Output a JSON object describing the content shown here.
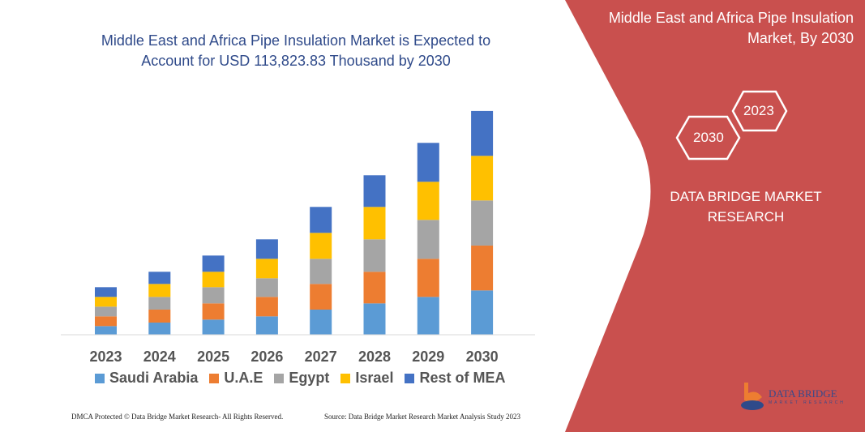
{
  "header": {
    "title": "Middle East and Africa Pipe Insulation Market is Expected to Account for USD 113,823.83 Thousand by 2030"
  },
  "side_panel": {
    "title": "Middle East and Africa Pipe Insulation Market, By 2030",
    "hex_left": "2030",
    "hex_right": "2023",
    "brand": "DATA BRIDGE MARKET RESEARCH",
    "logo_text": "DATA BRIDGE",
    "logo_sub": "MARKET RESEARCH",
    "color": "#c9504e"
  },
  "footer": {
    "left": "DMCA Protected © Data Bridge Market Research-  All Rights Reserved.",
    "right": "Source: Data Bridge Market Research  Market Analysis Study 2023"
  },
  "chart_data": {
    "type": "bar",
    "stacked": true,
    "title": "",
    "xlabel": "",
    "ylabel": "",
    "grid": false,
    "legend": "bottom",
    "categories": [
      "2023",
      "2024",
      "2025",
      "2026",
      "2027",
      "2028",
      "2029",
      "2030"
    ],
    "series": [
      {
        "name": "Saudi Arabia",
        "color": "#5b9bd5",
        "values": [
          4400,
          6190,
          7700,
          9350,
          12790,
          15950,
          19250,
          22550
        ]
      },
      {
        "name": "U.A.E",
        "color": "#ed7d31",
        "values": [
          4950,
          6600,
          8250,
          9900,
          13060,
          16090,
          19390,
          22830
        ]
      },
      {
        "name": "Egypt",
        "color": "#a5a5a5",
        "values": [
          4950,
          6460,
          8250,
          9490,
          12790,
          16500,
          19800,
          22960
        ]
      },
      {
        "name": "Israel",
        "color": "#ffc000",
        "values": [
          4950,
          6600,
          7840,
          9900,
          13200,
          16500,
          19390,
          22690
        ]
      },
      {
        "name": "Rest of MEA",
        "color": "#4472c4",
        "values": [
          4950,
          6190,
          8250,
          9900,
          13200,
          16090,
          19800,
          22830
        ]
      }
    ]
  }
}
